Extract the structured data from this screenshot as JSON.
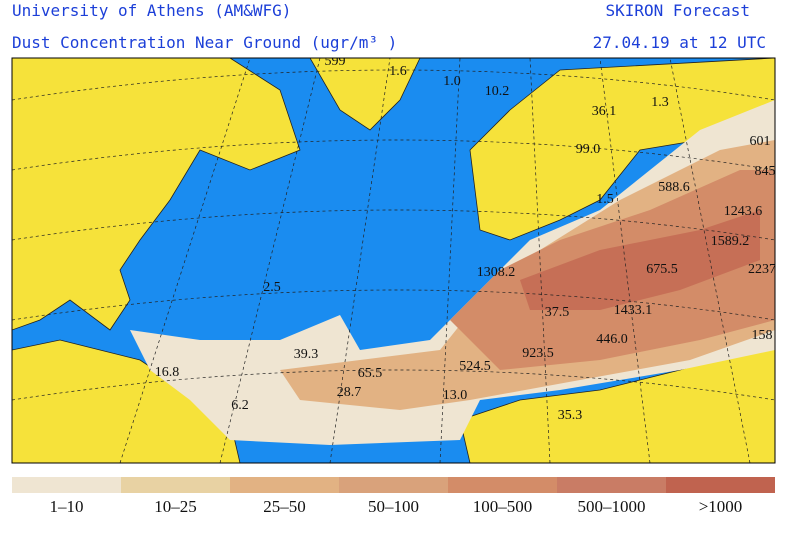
{
  "header": {
    "left_title": "University of Athens (AM&WFG)",
    "right_title": "SKIRON Forecast",
    "subtitle": "Dust Concentration Near Ground (ugr/m³ )",
    "date": "27.04.19 at 12 UTC"
  },
  "map": {
    "labels": [
      "599",
      "1.6",
      "1.0",
      "10.2",
      "36.1",
      "1.3",
      "99.0",
      "601",
      "845",
      "588.6",
      "1.5",
      "1243.6",
      "1589.2",
      "2237",
      "675.5",
      "1308.2",
      "2.5",
      "37.5",
      "1433.1",
      "158",
      "446.0",
      "39.3",
      "923.5",
      "16.8",
      "65.5",
      "524.5",
      "28.7",
      "13.0",
      "6.2",
      "35.3"
    ]
  },
  "legend": [
    {
      "label": "1–10",
      "color": "#efe5d2"
    },
    {
      "label": "10–25",
      "color": "#e8d2a3"
    },
    {
      "label": "25–50",
      "color": "#e2b283"
    },
    {
      "label": "50–100",
      "color": "#d9a27b"
    },
    {
      "label": "100–500",
      "color": "#d38c68"
    },
    {
      "label": "500–1000",
      "color": "#c97c65"
    },
    {
      "label": ">1000",
      "color": "#c0634f"
    }
  ]
}
